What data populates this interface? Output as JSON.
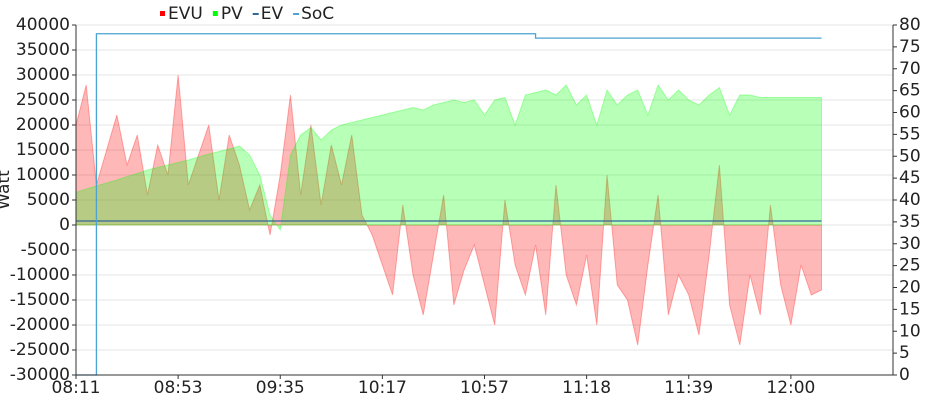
{
  "chart_data": {
    "type": "area",
    "y_label": "Watt",
    "categories": [
      "08:11",
      null,
      null,
      null,
      null,
      null,
      null,
      null,
      null,
      null,
      "08:53",
      null,
      null,
      null,
      null,
      null,
      null,
      null,
      null,
      null,
      "09:35",
      null,
      null,
      null,
      null,
      null,
      null,
      null,
      null,
      null,
      "10:17",
      null,
      null,
      null,
      null,
      null,
      null,
      null,
      null,
      null,
      "10:57",
      null,
      null,
      null,
      null,
      null,
      null,
      null,
      null,
      null,
      "11:18",
      null,
      null,
      null,
      null,
      null,
      null,
      null,
      null,
      null,
      "11:39",
      null,
      null,
      null,
      null,
      null,
      null,
      null,
      null,
      null,
      "12:00",
      null,
      null,
      null,
      null,
      null,
      null,
      null,
      null,
      null,
      null
    ],
    "series": [
      {
        "name": "EVU",
        "color": "#ff0000",
        "kind": "area",
        "values": [
          20000,
          28000,
          8000,
          15000,
          22000,
          12000,
          18000,
          6000,
          16000,
          10000,
          30000,
          8000,
          14000,
          20000,
          5000,
          18000,
          12000,
          3000,
          8000,
          -2000,
          10000,
          26000,
          6000,
          20000,
          4000,
          16000,
          8000,
          18000,
          2000,
          -2000,
          -8000,
          -14000,
          4000,
          -10000,
          -18000,
          -6000,
          6000,
          -16000,
          -9000,
          -4000,
          -12000,
          -20000,
          5000,
          -8000,
          -14000,
          -4000,
          -18000,
          8000,
          -10000,
          -16000,
          -6000,
          -20000,
          10000,
          -12000,
          -15000,
          -24000,
          -8000,
          6000,
          -18000,
          -10000,
          -14000,
          -22000,
          -6000,
          12000,
          -16000,
          -24000,
          -10000,
          -18000,
          4000,
          -12000,
          -20000,
          -8000,
          -14000,
          -13000,
          null,
          null,
          null,
          null,
          null,
          null,
          null
        ]
      },
      {
        "name": "PV",
        "color": "#00ff00",
        "kind": "area",
        "values": [
          6500,
          7200,
          7800,
          8400,
          9000,
          9700,
          10300,
          11000,
          11500,
          12000,
          12500,
          13000,
          13600,
          14200,
          14700,
          15200,
          15800,
          14000,
          10000,
          2000,
          -1000,
          14000,
          18000,
          19500,
          17000,
          19000,
          20000,
          20500,
          21000,
          21500,
          22000,
          22500,
          23000,
          23500,
          23000,
          24000,
          24500,
          25000,
          24500,
          25000,
          22000,
          25000,
          25500,
          20000,
          26000,
          26500,
          27000,
          26000,
          28000,
          24000,
          26000,
          20000,
          27000,
          24000,
          26000,
          27000,
          22000,
          28000,
          25000,
          27000,
          25000,
          24000,
          26000,
          27500,
          22000,
          26000,
          26000,
          25500,
          25500,
          25500,
          25500,
          25500,
          25500,
          25500,
          null,
          null,
          null,
          null,
          null,
          null,
          null
        ]
      },
      {
        "name": "EV",
        "color": "#336699",
        "kind": "line",
        "values": [
          800,
          800,
          800,
          800,
          800,
          800,
          800,
          800,
          800,
          800,
          800,
          800,
          800,
          800,
          800,
          800,
          800,
          800,
          800,
          800,
          800,
          800,
          800,
          800,
          800,
          800,
          800,
          800,
          800,
          800,
          800,
          800,
          800,
          800,
          800,
          800,
          800,
          800,
          800,
          800,
          800,
          800,
          800,
          800,
          800,
          800,
          800,
          800,
          800,
          800,
          800,
          800,
          800,
          800,
          800,
          800,
          800,
          800,
          800,
          800,
          800,
          800,
          800,
          800,
          800,
          800,
          800,
          800,
          800,
          800,
          800,
          800,
          800,
          800,
          null,
          null,
          null,
          null,
          null,
          null,
          null
        ]
      },
      {
        "name": "SoC",
        "color": "#4aa3d0",
        "kind": "line",
        "axis": "y2",
        "values": [
          0,
          0,
          78,
          78,
          78,
          78,
          78,
          78,
          78,
          78,
          78,
          78,
          78,
          78,
          78,
          78,
          78,
          78,
          78,
          78,
          78,
          78,
          78,
          78,
          78,
          78,
          78,
          78,
          78,
          78,
          78,
          78,
          78,
          78,
          78,
          78,
          78,
          78,
          78,
          78,
          78,
          78,
          78,
          78,
          78,
          77,
          77,
          77,
          77,
          77,
          77,
          77,
          77,
          77,
          77,
          77,
          77,
          77,
          77,
          77,
          77,
          77,
          77,
          77,
          77,
          77,
          77,
          77,
          77,
          77,
          77,
          77,
          77,
          77,
          null,
          null,
          null,
          null,
          null,
          null,
          null
        ]
      }
    ],
    "ylim": [
      -30000,
      40000
    ],
    "yticks": [
      -30000,
      -25000,
      -20000,
      -15000,
      -10000,
      -5000,
      0,
      5000,
      10000,
      15000,
      20000,
      25000,
      30000,
      35000,
      40000
    ],
    "y2lim": [
      0,
      80
    ],
    "y2ticks": [
      0,
      5,
      10,
      15,
      20,
      25,
      30,
      35,
      40,
      45,
      50,
      55,
      60,
      65,
      70,
      75,
      80
    ],
    "grid": true
  }
}
